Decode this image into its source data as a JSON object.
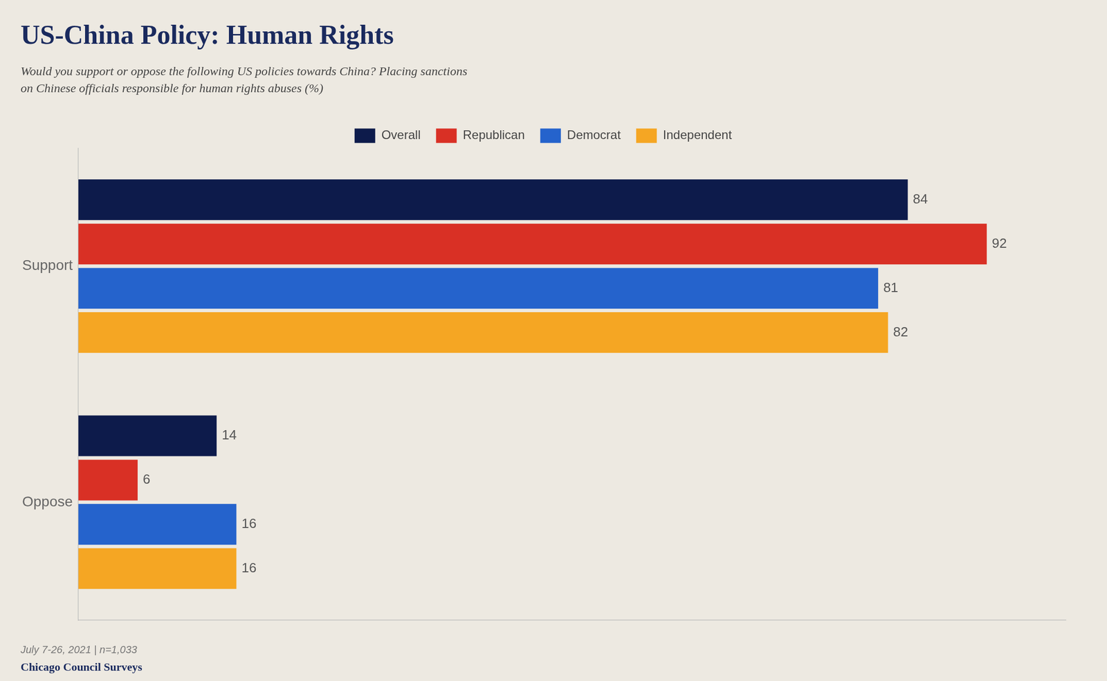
{
  "chart_data": {
    "type": "bar",
    "orientation": "horizontal",
    "title": "US-China Policy: Human Rights",
    "subtitle": "Would you support or oppose the following US policies towards China? Placing sanctions\non Chinese officials responsible for human rights abuses (%)",
    "categories": [
      "Support",
      "Oppose"
    ],
    "series": [
      {
        "name": "Overall",
        "color": "#0d1b4b",
        "values": [
          84,
          14
        ]
      },
      {
        "name": "Republican",
        "color": "#d93025",
        "values": [
          92,
          6
        ]
      },
      {
        "name": "Democrat",
        "color": "#2563cc",
        "values": [
          81,
          16
        ]
      },
      {
        "name": "Independent",
        "color": "#f5a623",
        "values": [
          82,
          16
        ]
      }
    ],
    "xlim": [
      0,
      100
    ],
    "grid": false,
    "legend": "top",
    "data_labels": true,
    "tick_labels": "y",
    "annotations": [
      "July 7-26, 2021 | n=1,033",
      "Chicago Council Surveys"
    ]
  }
}
